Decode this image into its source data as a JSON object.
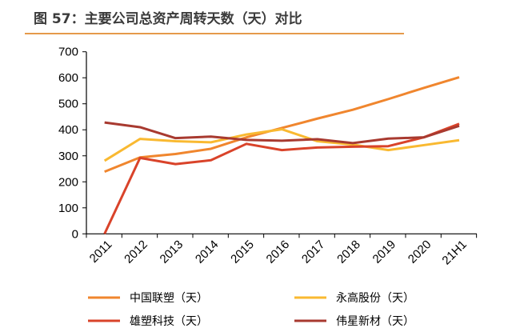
{
  "header": {
    "title": "图 57：主要公司总资产周转天数（天）对比"
  },
  "colors": {
    "rule": "#E59A4B"
  },
  "chart_data": {
    "type": "line",
    "title": "图 57：主要公司总资产周转天数（天）对比",
    "x": [
      "2011",
      "2012",
      "2013",
      "2014",
      "2015",
      "2016",
      "2017",
      "2018",
      "2019",
      "2020",
      "21H1"
    ],
    "ylim": [
      0,
      700
    ],
    "yticks": [
      0,
      100,
      200,
      300,
      400,
      500,
      600,
      700
    ],
    "grid": false,
    "legend_position": "bottom",
    "series": [
      {
        "name": "中国联塑（天）",
        "color": "#F0862E",
        "values": [
          239,
          294,
          307,
          327,
          371,
          407,
          443,
          477,
          518,
          561,
          602
        ]
      },
      {
        "name": "永高股份（天）",
        "color": "#F9B931",
        "values": [
          281,
          365,
          356,
          352,
          382,
          402,
          356,
          343,
          322,
          341,
          360
        ]
      },
      {
        "name": "雄塑科技（天）",
        "color": "#D9432A",
        "values": [
          0,
          292,
          268,
          283,
          346,
          322,
          332,
          335,
          337,
          371,
          423
        ]
      },
      {
        "name": "伟星新材（天）",
        "color": "#A83A30",
        "values": [
          428,
          410,
          368,
          374,
          361,
          358,
          364,
          349,
          366,
          371,
          415
        ]
      }
    ]
  }
}
